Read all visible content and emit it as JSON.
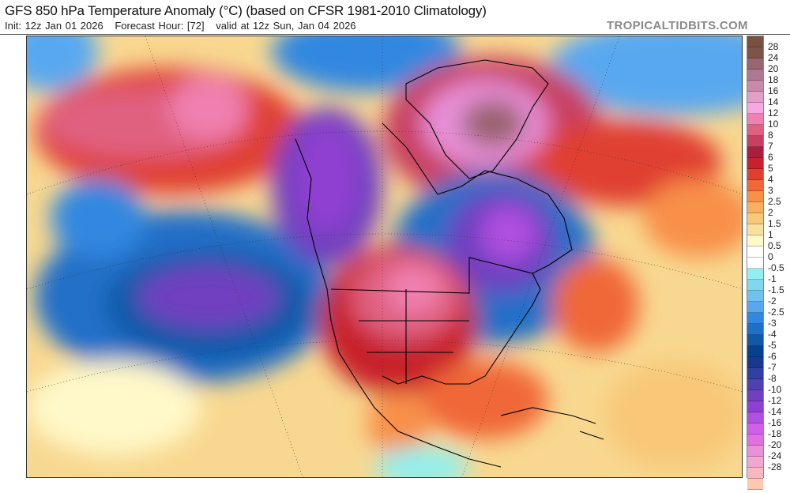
{
  "header": {
    "title": "GFS 850 hPa Temperature Anomaly (°C) (based on CFSR 1981-2010 Climatology)",
    "init": "Init: 12z Jan 01 2026",
    "forecast_hour": "Forecast Hour: [72]",
    "valid": "valid at 12z Sun, Jan 04 2026",
    "brand": "TROPICALTIDBITS.COM"
  },
  "colorbar": {
    "labels": [
      "28",
      "24",
      "20",
      "18",
      "16",
      "14",
      "12",
      "10",
      "8",
      "7",
      "6",
      "5",
      "4",
      "3",
      "2.5",
      "2",
      "1.5",
      "1",
      "0.5",
      "0",
      "-0.5",
      "-1",
      "-1.5",
      "-2",
      "-2.5",
      "-3",
      "-4",
      "-5",
      "-6",
      "-7",
      "-8",
      "-10",
      "-12",
      "-14",
      "-16",
      "-18",
      "-20",
      "-24",
      "-28"
    ],
    "colors": [
      "#7a5040",
      "#7d5548",
      "#9a6470",
      "#b07890",
      "#c88aa8",
      "#e0a0c8",
      "#f8a8e0",
      "#f080b0",
      "#e06080",
      "#c84060",
      "#a82040",
      "#c8202c",
      "#e04030",
      "#f06838",
      "#f89048",
      "#f8b060",
      "#f8c878",
      "#f8e0a0",
      "#fff8c8",
      "#ffffff",
      "#ffffff",
      "#90f0f0",
      "#80d8f0",
      "#70c0f0",
      "#58a8f0",
      "#3088e0",
      "#2070c8",
      "#1058a8",
      "#084090",
      "#183890",
      "#3040a0",
      "#5040b0",
      "#7040c0",
      "#9040d0",
      "#b050e0",
      "#d060e8",
      "#e070e0",
      "#e890d8",
      "#f0a8d0",
      "#f8b8c0",
      "#ffc8b0"
    ]
  }
}
